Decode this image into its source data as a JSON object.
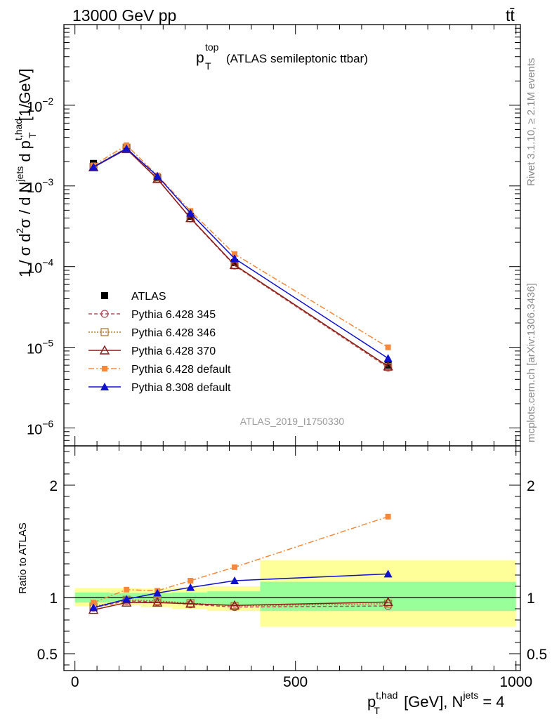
{
  "header": {
    "left": "13000 GeV pp",
    "right": "tt̄"
  },
  "side_text": {
    "rivet": "Rivet 3.1.10, ≥ 2.1M events",
    "mcplots": "mcplots.cern.ch [arXiv:1306.3436]"
  },
  "watermark": "ATLAS_2019_I1750330",
  "chart_data": [
    {
      "type": "line",
      "panel": "main",
      "title": "p_T^top (ATLAS semileptonic ttbar)",
      "title_parts": {
        "p": "p",
        "sup": "top",
        "sub": "T",
        "rest": "(ATLAS semileptonic ttbar)"
      },
      "ylabel": "1 / σ d²σ / d N^jets d p_T^t,had [1/GeV]",
      "ylabel_parts": {
        "a": "1 / σ d",
        "sup2": "2",
        "b": "σ / d N",
        "supjets": "jets",
        "c": " d p",
        "supth": "t,had",
        "subT": "T",
        "d": " [1/GeV]"
      },
      "yscale": "log",
      "ylim": [
        6e-07,
        0.1
      ],
      "xlim": [
        -25,
        1010
      ],
      "yticks": [
        {
          "v": 1e-06,
          "b": "10",
          "e": "−6"
        },
        {
          "v": 1e-05,
          "b": "10",
          "e": "−5"
        },
        {
          "v": 0.0001,
          "b": "10",
          "e": "−4"
        },
        {
          "v": 0.001,
          "b": "10",
          "e": "−3"
        },
        {
          "v": 0.01,
          "b": "10",
          "e": "−2"
        }
      ],
      "legend_position": "lower-left",
      "x": [
        42,
        117,
        187,
        262,
        362,
        710
      ],
      "series": [
        {
          "name": "ATLAS",
          "color": "#000000",
          "marker": "square",
          "dash": "none",
          "values": [
            0.0019,
            0.003,
            0.00128,
            0.00042,
            0.000112,
            6e-06
          ]
        },
        {
          "name": "Pythia 6.428 345",
          "color": "#b54a5a",
          "marker": "circle-open",
          "dash": "5,3",
          "values": [
            0.00172,
            0.00295,
            0.00123,
            0.000395,
            0.000103,
            5.6e-06
          ]
        },
        {
          "name": "Pythia 6.428 346",
          "color": "#b07a30",
          "marker": "square-open",
          "dash": "2,2",
          "values": [
            0.00172,
            0.00298,
            0.00124,
            0.000398,
            0.000104,
            5.7e-06
          ]
        },
        {
          "name": "Pythia 6.428 370",
          "color": "#8b1a1a",
          "marker": "triangle-open",
          "dash": "none",
          "values": [
            0.0017,
            0.00286,
            0.00122,
            0.0004,
            0.000105,
            5.8e-06
          ]
        },
        {
          "name": "Pythia 6.428 default",
          "color": "#f5883a",
          "marker": "square-small",
          "dash": "8,3,2,3",
          "values": [
            0.0018,
            0.0032,
            0.00135,
            0.00049,
            0.000143,
            1e-05
          ]
        },
        {
          "name": "Pythia 8.308 default",
          "color": "#1010d0",
          "marker": "triangle",
          "dash": "none",
          "values": [
            0.00172,
            0.0029,
            0.00133,
            0.00046,
            0.000126,
            7.3e-06
          ]
        }
      ]
    },
    {
      "type": "line",
      "panel": "ratio",
      "ylabel": "Ratio to ATLAS",
      "xlabel": "p_T^t,had [GeV], N^jets = 4",
      "xlabel_parts": {
        "p": "p",
        "sup": "t,had",
        "sub": "T",
        "a": " [GeV], N",
        "supjets": "jets",
        "b": " = 4"
      },
      "ylim": [
        0.35,
        2.35
      ],
      "xlim": [
        -25,
        1010
      ],
      "yticks": [
        0.5,
        1,
        2
      ],
      "ytick_labels": [
        "0.5",
        "1",
        "2"
      ],
      "xticks": [
        0,
        500,
        1000
      ],
      "xtick_labels": [
        "0",
        "500",
        "1000"
      ],
      "reference_line": 1,
      "bins": [
        {
          "lo": 0,
          "hi": 80,
          "inner": [
            0.955,
            1.045
          ],
          "outer": [
            0.925,
            1.085
          ]
        },
        {
          "lo": 80,
          "hi": 150,
          "inner": [
            0.965,
            1.04
          ],
          "outer": [
            0.93,
            1.085
          ]
        },
        {
          "lo": 150,
          "hi": 220,
          "inner": [
            0.955,
            1.04
          ],
          "outer": [
            0.915,
            1.08
          ]
        },
        {
          "lo": 220,
          "hi": 300,
          "inner": [
            0.95,
            1.045
          ],
          "outer": [
            0.9,
            1.09
          ]
        },
        {
          "lo": 300,
          "hi": 420,
          "inner": [
            0.935,
            1.055
          ],
          "outer": [
            0.88,
            1.1
          ]
        },
        {
          "lo": 420,
          "hi": 1000,
          "inner": [
            0.88,
            1.14
          ],
          "outer": [
            0.74,
            1.33
          ]
        }
      ],
      "x": [
        42,
        117,
        187,
        262,
        362,
        710
      ],
      "series": [
        {
          "name": "Pythia 6.428 345",
          "values": [
            0.91,
            0.97,
            0.96,
            0.94,
            0.915,
            0.925
          ]
        },
        {
          "name": "Pythia 6.428 346",
          "values": [
            0.92,
            0.98,
            0.97,
            0.95,
            0.925,
            0.945
          ]
        },
        {
          "name": "Pythia 6.428 370",
          "values": [
            0.89,
            0.955,
            0.955,
            0.945,
            0.93,
            0.96
          ]
        },
        {
          "name": "Pythia 6.428 default",
          "values": [
            0.955,
            1.07,
            1.06,
            1.15,
            1.27,
            1.72
          ]
        },
        {
          "name": "Pythia 8.308 default",
          "values": [
            0.91,
            0.985,
            1.04,
            1.09,
            1.15,
            1.21
          ]
        }
      ]
    }
  ]
}
